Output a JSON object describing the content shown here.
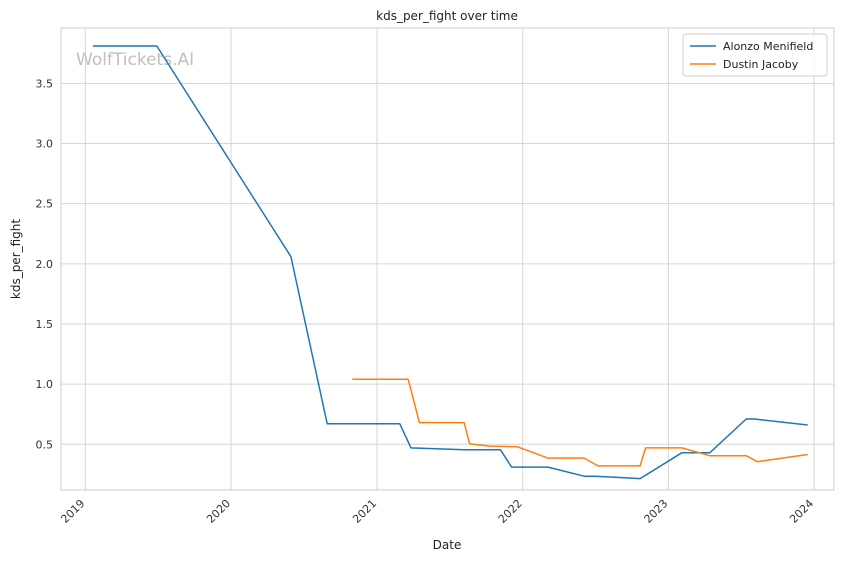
{
  "chart_data": {
    "type": "line",
    "title": "kds_per_fight over time",
    "xlabel": "Date",
    "ylabel": "kds_per_fight",
    "watermark": "WolfTickets.AI",
    "x_axis_type": "date",
    "xlim": [
      "2018-11-01",
      "2024-02-20"
    ],
    "ylim": [
      0.12,
      3.96
    ],
    "x_ticks": [
      "2019",
      "2020",
      "2021",
      "2022",
      "2023",
      "2024"
    ],
    "y_ticks": [
      0.5,
      1.0,
      1.5,
      2.0,
      2.5,
      3.0,
      3.5
    ],
    "y_tick_labels": [
      "0.5",
      "1.0",
      "1.5",
      "2.0",
      "2.5",
      "3.0",
      "3.5"
    ],
    "grid": true,
    "legend_position": "top-right",
    "series": [
      {
        "name": "Alonzo Menifield",
        "color": "#1f77b4",
        "points": [
          [
            "2019-01-20",
            3.81
          ],
          [
            "2019-06-29",
            3.81
          ],
          [
            "2020-05-30",
            2.06
          ],
          [
            "2020-08-29",
            0.67
          ],
          [
            "2021-02-27",
            0.67
          ],
          [
            "2021-03-27",
            0.47
          ],
          [
            "2021-08-07",
            0.455
          ],
          [
            "2021-11-06",
            0.455
          ],
          [
            "2021-12-04",
            0.31
          ],
          [
            "2022-03-05",
            0.31
          ],
          [
            "2022-06-04",
            0.235
          ],
          [
            "2022-07-02",
            0.235
          ],
          [
            "2022-10-22",
            0.215
          ],
          [
            "2023-02-04",
            0.43
          ],
          [
            "2023-04-15",
            0.43
          ],
          [
            "2023-07-15",
            0.71
          ],
          [
            "2023-08-05",
            0.71
          ],
          [
            "2023-12-16",
            0.66
          ]
        ]
      },
      {
        "name": "Dustin Jacoby",
        "color": "#ff7f0e",
        "points": [
          [
            "2020-10-31",
            1.04
          ],
          [
            "2021-03-20",
            1.04
          ],
          [
            "2021-04-17",
            0.68
          ],
          [
            "2021-08-07",
            0.68
          ],
          [
            "2021-08-21",
            0.505
          ],
          [
            "2021-10-09",
            0.485
          ],
          [
            "2021-12-18",
            0.48
          ],
          [
            "2022-03-05",
            0.385
          ],
          [
            "2022-06-04",
            0.385
          ],
          [
            "2022-07-09",
            0.32
          ],
          [
            "2022-10-22",
            0.32
          ],
          [
            "2022-11-05",
            0.47
          ],
          [
            "2023-02-04",
            0.47
          ],
          [
            "2023-04-15",
            0.405
          ],
          [
            "2023-07-15",
            0.405
          ],
          [
            "2023-08-12",
            0.355
          ],
          [
            "2023-12-16",
            0.415
          ]
        ]
      }
    ]
  }
}
